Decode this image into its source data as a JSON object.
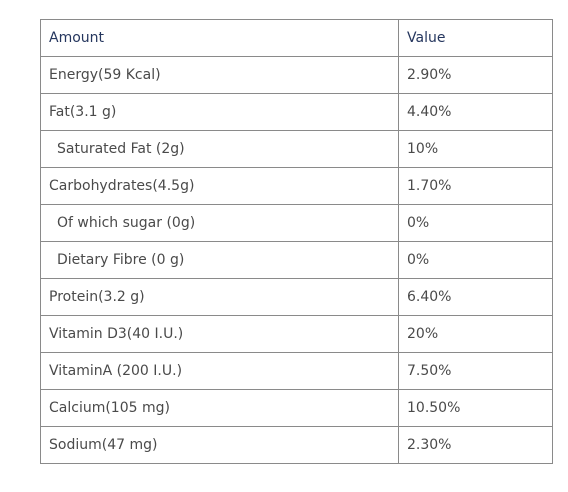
{
  "table": {
    "headers": {
      "amount": "Amount",
      "value": "Value"
    },
    "rows": [
      {
        "amount": "Energy(59 Kcal)",
        "value": "2.90%"
      },
      {
        "amount": "Fat(3.1 g)",
        "value": "4.40%"
      },
      {
        "amount": "Saturated Fat (2g)",
        "value": "10%"
      },
      {
        "amount": "Carbohydrates(4.5g)",
        "value": "1.70%"
      },
      {
        "amount": "Of which sugar (0g)",
        "value": "0%"
      },
      {
        "amount": "Dietary Fibre (0 g)",
        "value": "0%"
      },
      {
        "amount": "Protein(3.2 g)",
        "value": "6.40%"
      },
      {
        "amount": "Vitamin D3(40 I.U.)",
        "value": "20%"
      },
      {
        "amount": "VitaminA (200 I.U.)",
        "value": "7.50%"
      },
      {
        "amount": "Calcium(105 mg)",
        "value": "10.50%"
      },
      {
        "amount": "Sodium(47 mg)",
        "value": "2.30%"
      }
    ]
  },
  "colors": {
    "header_text": "#25365e",
    "cell_text": "#4a4a4a",
    "border": "#8a8a8a"
  }
}
